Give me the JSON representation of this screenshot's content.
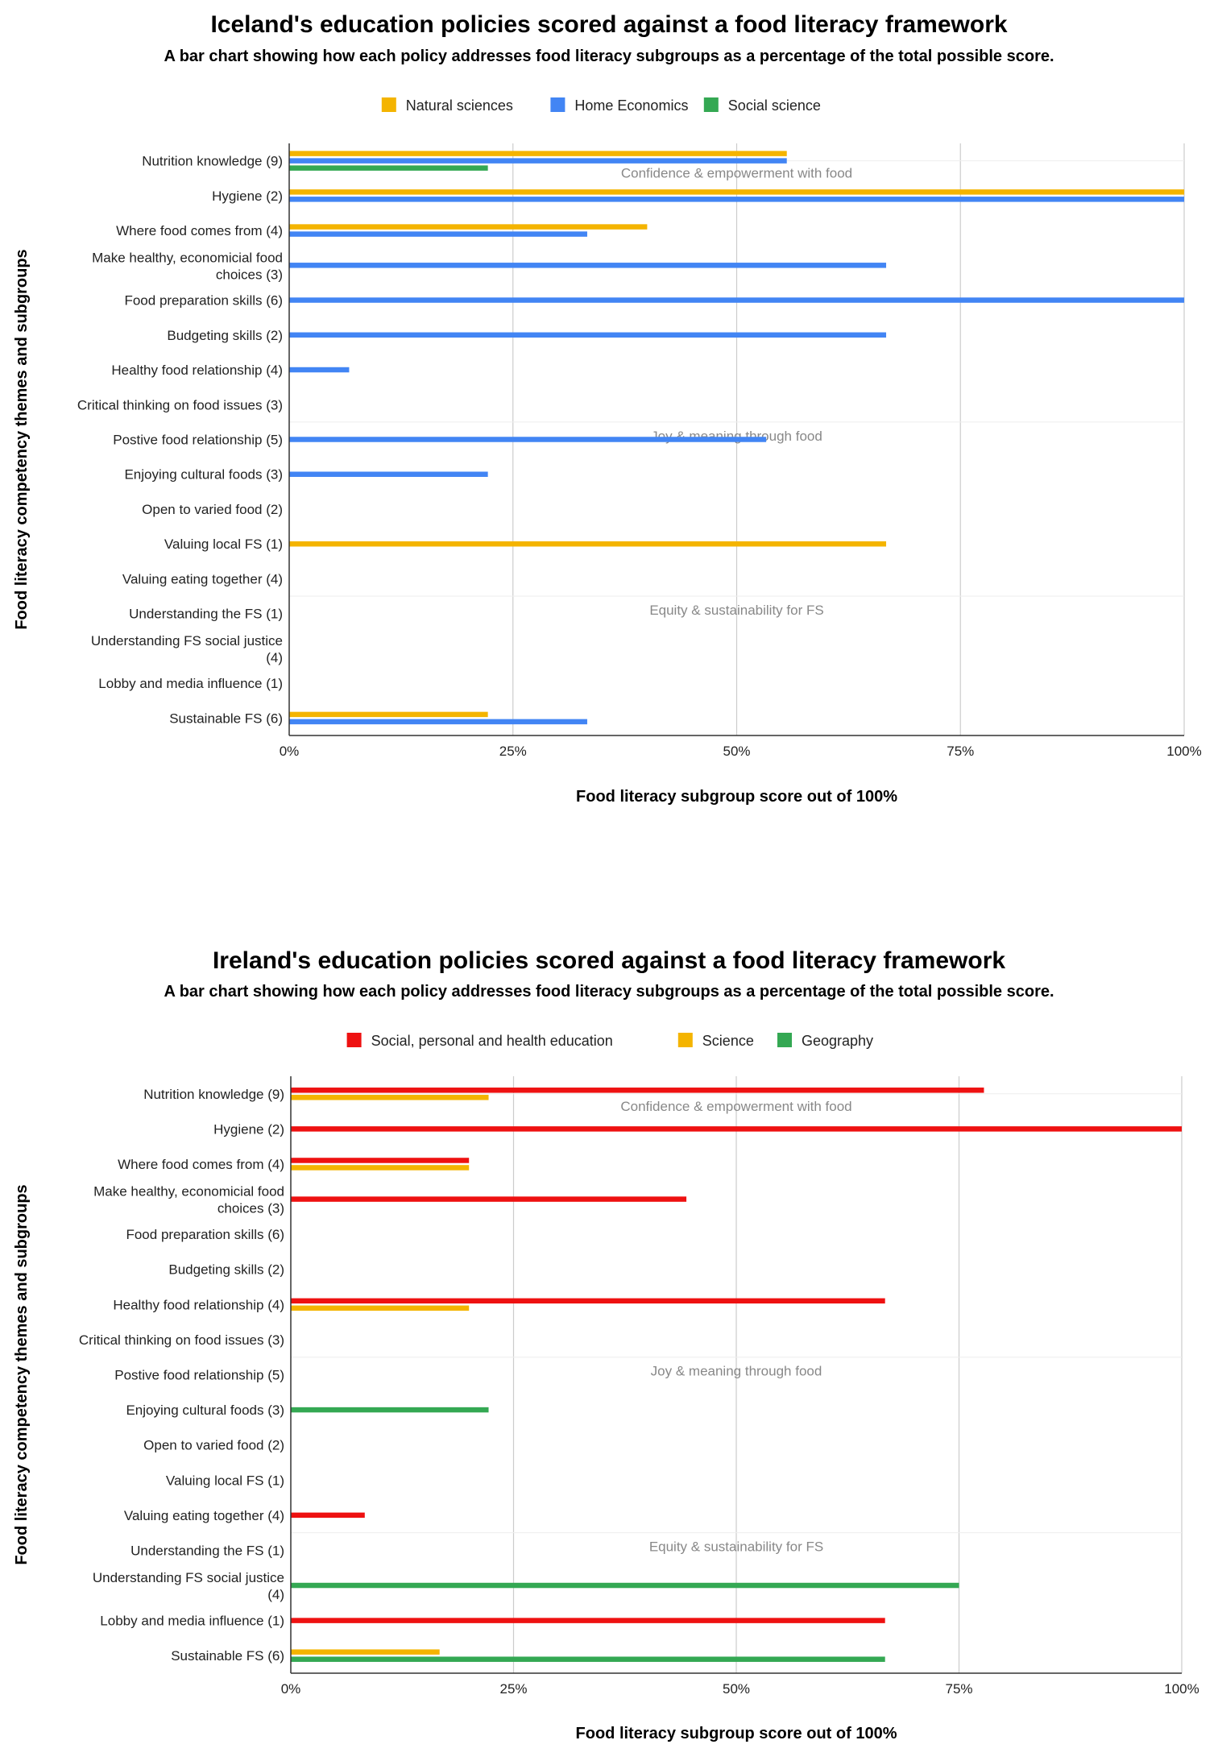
{
  "chart_data": [
    {
      "type": "bar",
      "orientation": "horizontal",
      "title": "Iceland's education policies scored against a food literacy framework",
      "subtitle": "A bar chart showing how each policy addresses food literacy subgroups as a percentage of the total possible score.",
      "xlabel": "Food literacy subgroup score out of 100%",
      "ylabel": "Food literacy competency themes and subgroups",
      "xlim": [
        0,
        100
      ],
      "xticks": [
        "0%",
        "25%",
        "50%",
        "75%",
        "100%"
      ],
      "legend_position": "top",
      "categories": [
        "Nutrition knowledge (9)",
        "Hygiene (2)",
        "Where food comes from (4)",
        "Make healthy, economicial food choices (3)",
        "Food preparation skills (6)",
        "Budgeting skills (2)",
        "Healthy food relationship (4)",
        "Critical thinking on food issues (3)",
        "Postive food relationship (5)",
        "Enjoying cultural foods (3)",
        "Open to varied food (2)",
        "Valuing local FS (1)",
        "Valuing eating together (4)",
        "Understanding the FS (1)",
        "Understanding FS social justice (4)",
        "Lobby and media influence (1)",
        "Sustainable FS (6)"
      ],
      "category_lines": [
        [
          "Nutrition knowledge (9)"
        ],
        [
          "Hygiene (2)"
        ],
        [
          "Where food comes from (4)"
        ],
        [
          "Make healthy, economicial food",
          "choices (3)"
        ],
        [
          "Food preparation skills (6)"
        ],
        [
          "Budgeting skills (2)"
        ],
        [
          "Healthy food relationship (4)"
        ],
        [
          "Critical thinking on food issues (3)"
        ],
        [
          "Postive food relationship (5)"
        ],
        [
          "Enjoying cultural foods (3)"
        ],
        [
          "Open to varied food (2)"
        ],
        [
          "Valuing local FS (1)"
        ],
        [
          "Valuing eating together (4)"
        ],
        [
          "Understanding the FS (1)"
        ],
        [
          "Understanding FS social justice",
          "(4)"
        ],
        [
          "Lobby and media influence (1)"
        ],
        [
          "Sustainable FS (6)"
        ]
      ],
      "themes": [
        {
          "label": "Confidence & empowerment with food",
          "after_index": 0
        },
        {
          "label": "Joy & meaning through food",
          "after_index": 8
        },
        {
          "label": "Equity & sustainability for FS",
          "after_index": 13
        }
      ],
      "series": [
        {
          "name": "Natural sciences",
          "color": "#f4b400",
          "values": [
            55.6,
            100,
            40,
            0,
            0,
            0,
            0,
            0,
            0,
            0,
            0,
            66.7,
            0,
            0,
            0,
            0,
            22.2
          ]
        },
        {
          "name": "Home Economics",
          "color": "#4285f4",
          "values": [
            55.6,
            100,
            33.3,
            66.7,
            100,
            66.7,
            6.7,
            0,
            53.3,
            22.2,
            0,
            0,
            0,
            0,
            0,
            0,
            33.3
          ]
        },
        {
          "name": "Social science",
          "color": "#34a853",
          "values": [
            22.2,
            0,
            0,
            0,
            0,
            0,
            0,
            0,
            0,
            0,
            0,
            0,
            0,
            0,
            0,
            0,
            0
          ]
        }
      ]
    },
    {
      "type": "bar",
      "orientation": "horizontal",
      "title": "Ireland's education policies scored against a food literacy framework",
      "subtitle": "A bar chart showing how each policy addresses food literacy subgroups as a percentage of the total possible score.",
      "xlabel": "Food literacy subgroup score out of 100%",
      "ylabel": "Food literacy competency themes and subgroups",
      "xlim": [
        0,
        100
      ],
      "xticks": [
        "0%",
        "25%",
        "50%",
        "75%",
        "100%"
      ],
      "legend_position": "top",
      "categories": [
        "Nutrition knowledge (9)",
        "Hygiene (2)",
        "Where food comes from (4)",
        "Make healthy, economicial food choices (3)",
        "Food preparation skills (6)",
        "Budgeting skills (2)",
        "Healthy food relationship (4)",
        "Critical thinking on food issues (3)",
        "Postive food relationship (5)",
        "Enjoying cultural foods (3)",
        "Open to varied food (2)",
        "Valuing local FS (1)",
        "Valuing eating together (4)",
        "Understanding the FS (1)",
        "Understanding FS social justice (4)",
        "Lobby and media influence (1)",
        "Sustainable FS (6)"
      ],
      "category_lines": [
        [
          "Nutrition knowledge (9)"
        ],
        [
          "Hygiene (2)"
        ],
        [
          "Where food comes from (4)"
        ],
        [
          "Make healthy, economicial food",
          "choices (3)"
        ],
        [
          "Food preparation skills (6)"
        ],
        [
          "Budgeting skills (2)"
        ],
        [
          "Healthy food relationship (4)"
        ],
        [
          "Critical thinking on food issues (3)"
        ],
        [
          "Postive food relationship (5)"
        ],
        [
          "Enjoying cultural foods (3)"
        ],
        [
          "Open to varied food (2)"
        ],
        [
          "Valuing local FS (1)"
        ],
        [
          "Valuing eating together (4)"
        ],
        [
          "Understanding the FS (1)"
        ],
        [
          "Understanding FS social justice",
          "(4)"
        ],
        [
          "Lobby and media influence (1)"
        ],
        [
          "Sustainable FS (6)"
        ]
      ],
      "themes": [
        {
          "label": "Confidence & empowerment with food",
          "after_index": 0
        },
        {
          "label": "Joy & meaning through food",
          "after_index": 8
        },
        {
          "label": "Equity & sustainability for FS",
          "after_index": 13
        }
      ],
      "series": [
        {
          "name": "Social, personal and health education",
          "color": "#ee1111",
          "values": [
            77.8,
            100,
            20,
            44.4,
            0,
            0,
            66.7,
            0,
            0,
            0,
            0,
            0,
            8.3,
            0,
            0,
            66.7,
            0
          ]
        },
        {
          "name": "Science",
          "color": "#f4b400",
          "values": [
            22.2,
            0,
            20,
            0,
            0,
            0,
            20,
            0,
            0,
            0,
            0,
            0,
            0,
            0,
            0,
            0,
            16.7
          ]
        },
        {
          "name": "Geography",
          "color": "#34a853",
          "values": [
            0,
            0,
            0,
            0,
            0,
            0,
            0,
            0,
            0,
            22.2,
            0,
            0,
            0,
            0,
            75,
            0,
            66.7
          ]
        }
      ]
    }
  ]
}
